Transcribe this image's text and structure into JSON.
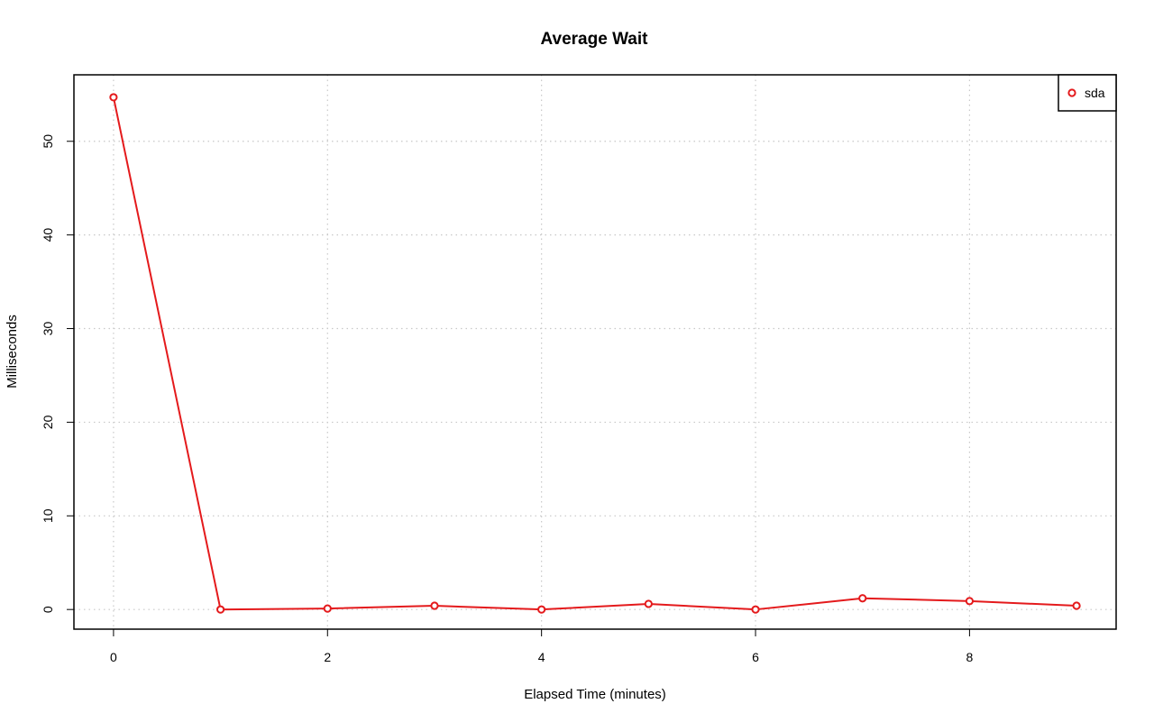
{
  "chart_data": {
    "type": "line",
    "title": "Average Wait",
    "xlabel": "Elapsed Time (minutes)",
    "ylabel": "Milliseconds",
    "xlim": [
      -0.37,
      9.37
    ],
    "ylim": [
      -2.1,
      57.1
    ],
    "x_ticks": [
      0,
      2,
      4,
      6,
      8
    ],
    "y_ticks": [
      0,
      10,
      20,
      30,
      40,
      50
    ],
    "grid": true,
    "legend_position": "top-right",
    "series": [
      {
        "name": "sda",
        "color": "#e41a1c",
        "x": [
          0,
          1,
          2,
          3,
          4,
          5,
          6,
          7,
          8,
          9
        ],
        "y": [
          54.7,
          0.0,
          0.1,
          0.4,
          0.0,
          0.6,
          0.0,
          1.2,
          0.9,
          0.4
        ]
      }
    ]
  }
}
